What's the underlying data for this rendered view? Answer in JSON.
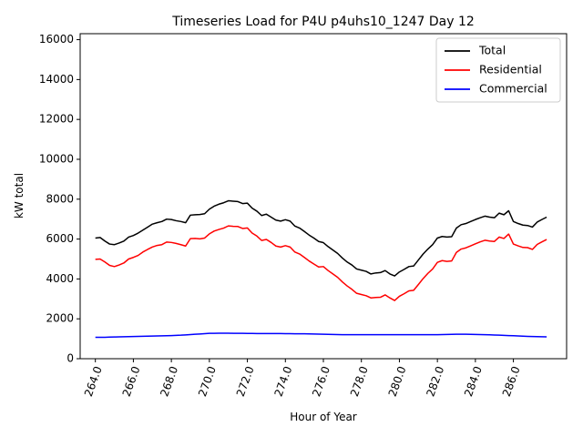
{
  "chart_data": {
    "type": "line",
    "title": "Timeseries Load for P4U p4uhs10_1247  Day 12",
    "xlabel": "Hour of Year",
    "ylabel": "kW total",
    "xlim": [
      263.2,
      288.8
    ],
    "ylim": [
      0,
      16300
    ],
    "xticks": [
      264,
      266,
      268,
      270,
      272,
      274,
      276,
      278,
      280,
      282,
      284,
      286
    ],
    "xtick_labels": [
      "264.0",
      "266.0",
      "268.0",
      "270.0",
      "272.0",
      "274.0",
      "276.0",
      "278.0",
      "280.0",
      "282.0",
      "284.0",
      "286.0"
    ],
    "yticks": [
      0,
      2000,
      4000,
      6000,
      8000,
      10000,
      12000,
      14000,
      16000
    ],
    "ytick_labels": [
      "0",
      "2000",
      "4000",
      "6000",
      "8000",
      "10000",
      "12000",
      "14000",
      "16000"
    ],
    "legend_position": "top-right",
    "x": [
      264.0,
      264.25,
      264.5,
      264.75,
      265.0,
      265.25,
      265.5,
      265.75,
      266.0,
      266.25,
      266.5,
      266.75,
      267.0,
      267.25,
      267.5,
      267.75,
      268.0,
      268.25,
      268.5,
      268.75,
      269.0,
      269.25,
      269.5,
      269.75,
      270.0,
      270.25,
      270.5,
      270.75,
      271.0,
      271.25,
      271.5,
      271.75,
      272.0,
      272.25,
      272.5,
      272.75,
      273.0,
      273.25,
      273.5,
      273.75,
      274.0,
      274.25,
      274.5,
      274.75,
      275.0,
      275.25,
      275.5,
      275.75,
      276.0,
      276.25,
      276.5,
      276.75,
      277.0,
      277.25,
      277.5,
      277.75,
      278.0,
      278.25,
      278.5,
      278.75,
      279.0,
      279.25,
      279.5,
      279.75,
      280.0,
      280.25,
      280.5,
      280.75,
      281.0,
      281.25,
      281.5,
      281.75,
      282.0,
      282.25,
      282.5,
      282.75,
      283.0,
      283.25,
      283.5,
      283.75,
      284.0,
      284.25,
      284.5,
      284.75,
      285.0,
      285.25,
      285.5,
      285.75,
      286.0,
      286.25,
      286.5,
      286.75,
      287.0,
      287.25,
      287.5,
      287.75
    ],
    "series": [
      {
        "name": "Total",
        "color": "#000000",
        "values": [
          6050,
          6080,
          5900,
          5750,
          5720,
          5800,
          5900,
          6100,
          6180,
          6300,
          6450,
          6600,
          6750,
          6820,
          6880,
          7000,
          6980,
          6920,
          6880,
          6820,
          7200,
          7220,
          7230,
          7270,
          7500,
          7650,
          7750,
          7820,
          7920,
          7900,
          7880,
          7780,
          7800,
          7550,
          7400,
          7180,
          7250,
          7100,
          6950,
          6900,
          6970,
          6900,
          6650,
          6550,
          6380,
          6200,
          6050,
          5880,
          5820,
          5620,
          5450,
          5280,
          5050,
          4850,
          4700,
          4500,
          4440,
          4380,
          4250,
          4300,
          4320,
          4420,
          4250,
          4150,
          4350,
          4480,
          4620,
          4650,
          4950,
          5250,
          5500,
          5720,
          6050,
          6130,
          6100,
          6120,
          6550,
          6720,
          6780,
          6880,
          6980,
          7070,
          7150,
          7100,
          7070,
          7300,
          7220,
          7420,
          6880,
          6780,
          6700,
          6680,
          6600,
          6850,
          6980,
          7100
        ]
      },
      {
        "name": "Residential",
        "color": "#ff0000",
        "values": [
          4980,
          5000,
          4850,
          4680,
          4620,
          4700,
          4800,
          5000,
          5080,
          5180,
          5350,
          5480,
          5600,
          5680,
          5720,
          5850,
          5830,
          5780,
          5720,
          5650,
          6020,
          6030,
          6010,
          6050,
          6260,
          6400,
          6480,
          6550,
          6660,
          6640,
          6630,
          6530,
          6560,
          6300,
          6150,
          5930,
          5980,
          5830,
          5650,
          5600,
          5670,
          5600,
          5350,
          5250,
          5080,
          4900,
          4750,
          4600,
          4620,
          4420,
          4250,
          4080,
          3850,
          3650,
          3480,
          3280,
          3220,
          3160,
          3050,
          3070,
          3080,
          3200,
          3050,
          2920,
          3130,
          3260,
          3400,
          3430,
          3720,
          4020,
          4280,
          4500,
          4830,
          4920,
          4880,
          4900,
          5330,
          5500,
          5560,
          5660,
          5760,
          5860,
          5940,
          5900,
          5880,
          6100,
          6030,
          6250,
          5750,
          5660,
          5580,
          5570,
          5480,
          5730,
          5860,
          5980
        ]
      },
      {
        "name": "Commercial",
        "color": "#0000ff",
        "values": [
          1075,
          1075,
          1075,
          1085,
          1090,
          1095,
          1100,
          1110,
          1115,
          1120,
          1125,
          1130,
          1135,
          1140,
          1145,
          1150,
          1160,
          1170,
          1180,
          1195,
          1210,
          1225,
          1240,
          1255,
          1270,
          1275,
          1278,
          1278,
          1278,
          1275,
          1273,
          1270,
          1268,
          1265,
          1262,
          1260,
          1260,
          1260,
          1260,
          1260,
          1258,
          1255,
          1252,
          1250,
          1248,
          1245,
          1240,
          1235,
          1228,
          1220,
          1215,
          1210,
          1205,
          1205,
          1205,
          1205,
          1205,
          1205,
          1205,
          1205,
          1205,
          1205,
          1205,
          1205,
          1205,
          1205,
          1205,
          1205,
          1205,
          1205,
          1205,
          1205,
          1205,
          1210,
          1215,
          1220,
          1225,
          1225,
          1225,
          1220,
          1215,
          1210,
          1205,
          1200,
          1190,
          1180,
          1170,
          1160,
          1150,
          1140,
          1130,
          1120,
          1112,
          1105,
          1100,
          1095
        ]
      }
    ]
  }
}
